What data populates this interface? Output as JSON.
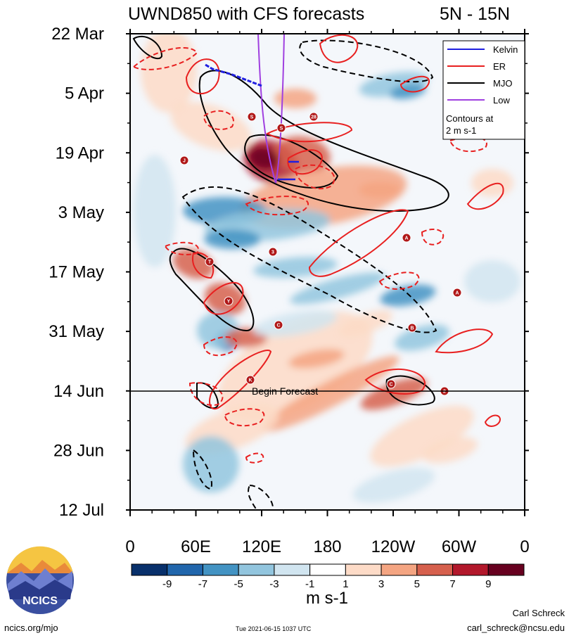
{
  "title": "UWND850 with CFS forecasts",
  "region": "5N - 15N",
  "legend": {
    "items": [
      {
        "label": "Kelvin",
        "color": "#1f1fe0"
      },
      {
        "label": "ER",
        "color": "#e82020"
      },
      {
        "label": "MJO",
        "color": "#000000"
      },
      {
        "label": "Low",
        "color": "#a040e0"
      }
    ],
    "note_line1": "Contours at",
    "note_line2": "2 m s-1"
  },
  "forecast_label": "Begin Forecast",
  "colorbar": {
    "ticks": [
      "-9",
      "-7",
      "-5",
      "-3",
      "-1",
      "1",
      "3",
      "5",
      "7",
      "9"
    ],
    "colors": [
      "#08306b",
      "#2166ac",
      "#4393c3",
      "#92c5de",
      "#d1e5f0",
      "#ffffff",
      "#fddbc7",
      "#f4a582",
      "#d6604d",
      "#b2182b",
      "#67001f"
    ],
    "unit": "m s-1"
  },
  "logo": {
    "text": "NCICS"
  },
  "footer": {
    "url": "ncics.org/mjo",
    "timestamp": "Tue 2021-06-15 1037 UTC",
    "author": "Carl Schreck",
    "email": "carl_schreck@ncsu.edu"
  },
  "chart_data": {
    "type": "heatmap",
    "title": "UWND850 with CFS forecasts",
    "subtitle": "5N - 15N",
    "x_tick_labels": [
      "0",
      "60E",
      "120E",
      "180",
      "120W",
      "60W",
      "0"
    ],
    "x_ticks_deg_east": [
      0,
      60,
      120,
      180,
      240,
      300,
      360
    ],
    "y_tick_labels": [
      "22 Mar",
      "5 Apr",
      "19 Apr",
      "3 May",
      "17 May",
      "31 May",
      "14 Jun",
      "28 Jun",
      "12 Jul"
    ],
    "y_ticks": [
      "2021-03-22",
      "2021-04-05",
      "2021-04-19",
      "2021-05-03",
      "2021-05-17",
      "2021-05-31",
      "2021-06-14",
      "2021-06-28",
      "2021-07-12"
    ],
    "forecast_start": "2021-06-14",
    "contour_interval": "2 m s-1",
    "colorbar_unit": "m s-1",
    "color_levels": [
      -9,
      -7,
      -5,
      -3,
      -1,
      1,
      3,
      5,
      7,
      9
    ],
    "storm_markers": [
      "S",
      "S",
      "28",
      "J",
      "T",
      "3",
      "A",
      "A",
      "Y",
      "C",
      "B",
      "K",
      "C",
      "2"
    ]
  }
}
